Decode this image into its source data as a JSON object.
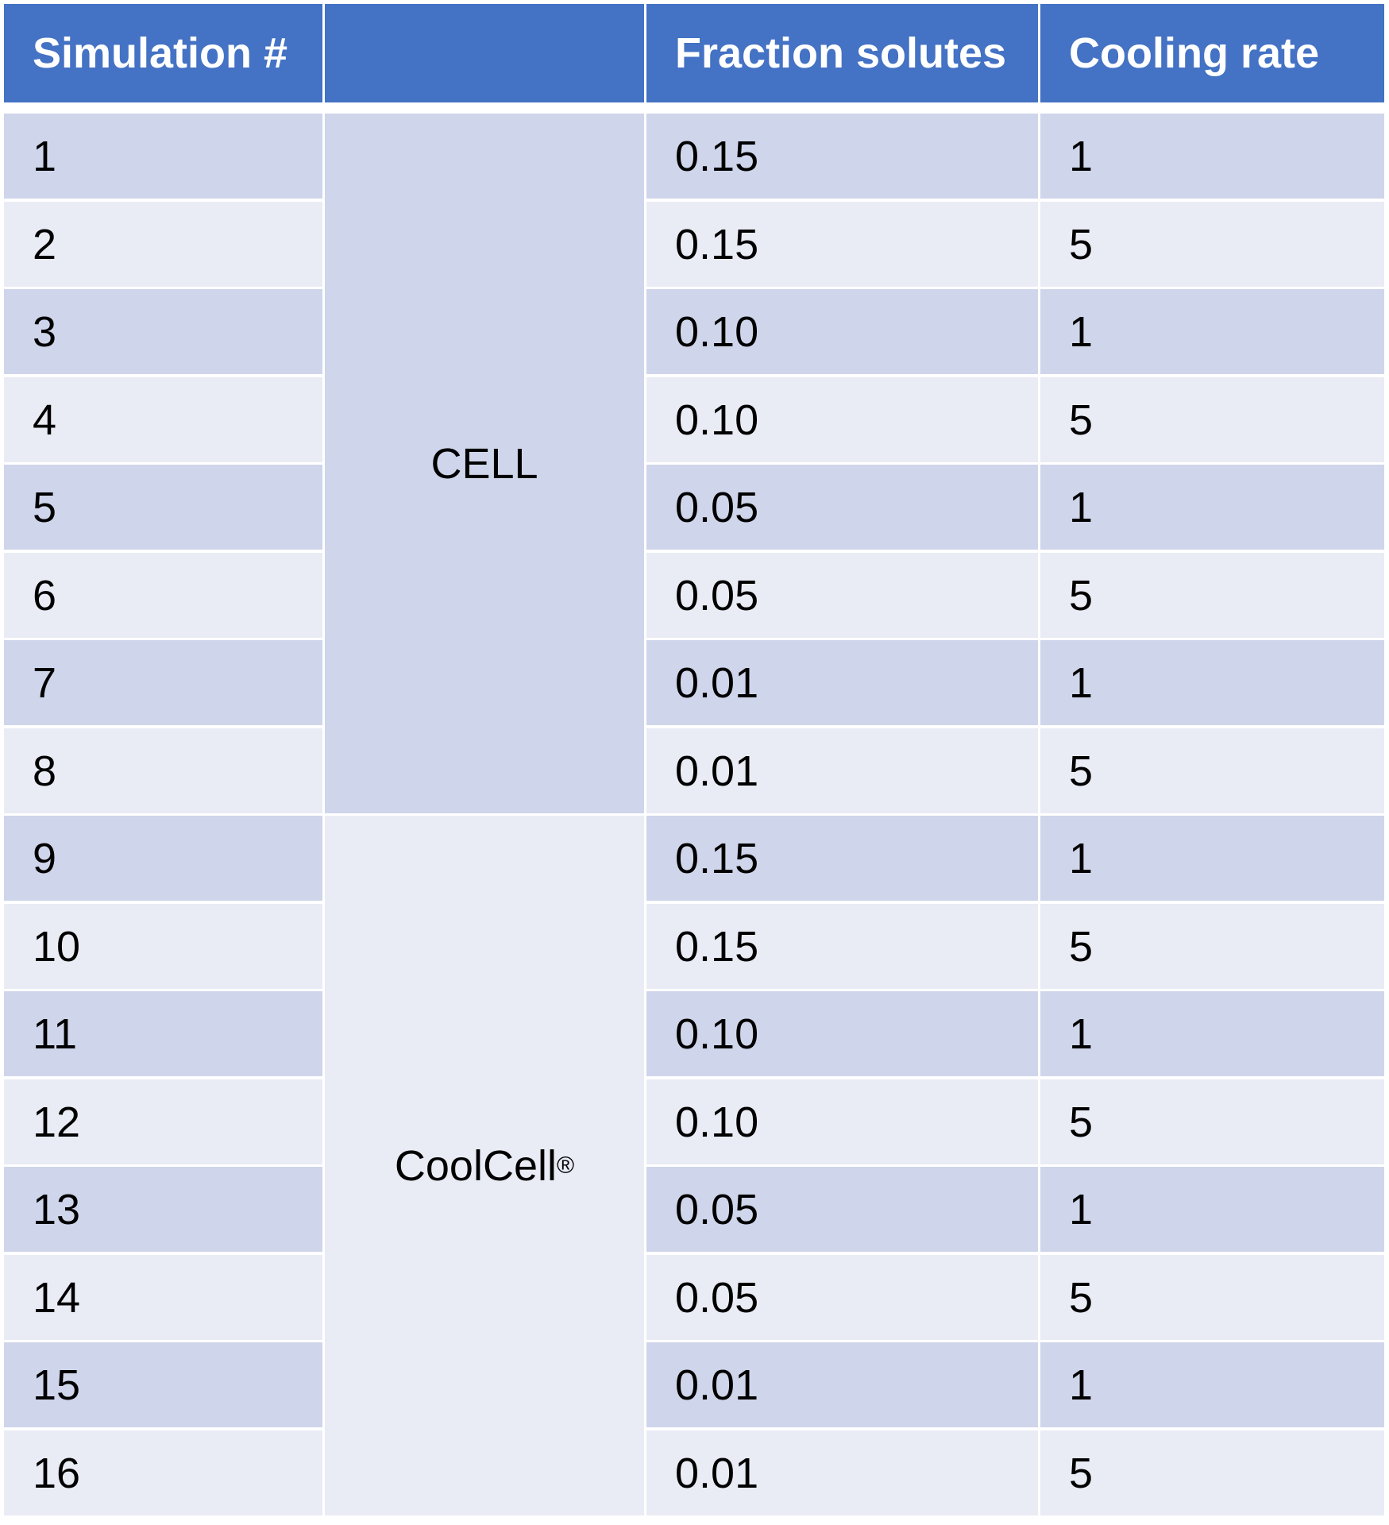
{
  "table": {
    "headers": [
      "Simulation #",
      "",
      "Fraction solutes",
      "Cooling rate"
    ],
    "groups": [
      {
        "label": "CELL",
        "superscript": "",
        "rows": [
          1,
          8
        ]
      },
      {
        "label": "CoolCell",
        "superscript": "®",
        "rows": [
          9,
          16
        ]
      }
    ],
    "rows": [
      {
        "sim": "1",
        "fraction": "0.15",
        "rate": "1"
      },
      {
        "sim": "2",
        "fraction": "0.15",
        "rate": "5"
      },
      {
        "sim": "3",
        "fraction": "0.10",
        "rate": "1"
      },
      {
        "sim": "4",
        "fraction": "0.10",
        "rate": "5"
      },
      {
        "sim": "5",
        "fraction": "0.05",
        "rate": "1"
      },
      {
        "sim": "6",
        "fraction": "0.05",
        "rate": "5"
      },
      {
        "sim": "7",
        "fraction": "0.01",
        "rate": "1"
      },
      {
        "sim": "8",
        "fraction": "0.01",
        "rate": "5"
      },
      {
        "sim": "9",
        "fraction": "0.15",
        "rate": "1"
      },
      {
        "sim": "10",
        "fraction": "0.15",
        "rate": "5"
      },
      {
        "sim": "11",
        "fraction": "0.10",
        "rate": "1"
      },
      {
        "sim": "12",
        "fraction": "0.10",
        "rate": "5"
      },
      {
        "sim": "13",
        "fraction": "0.05",
        "rate": "1"
      },
      {
        "sim": "14",
        "fraction": "0.05",
        "rate": "5"
      },
      {
        "sim": "15",
        "fraction": "0.01",
        "rate": "1"
      },
      {
        "sim": "16",
        "fraction": "0.01",
        "rate": "5"
      }
    ]
  },
  "colors": {
    "header_bg": "#4472c4",
    "header_text": "#ffffff",
    "row_odd_bg": "#cfd5ea",
    "row_even_bg": "#e9ebf5",
    "border": "#ffffff"
  }
}
